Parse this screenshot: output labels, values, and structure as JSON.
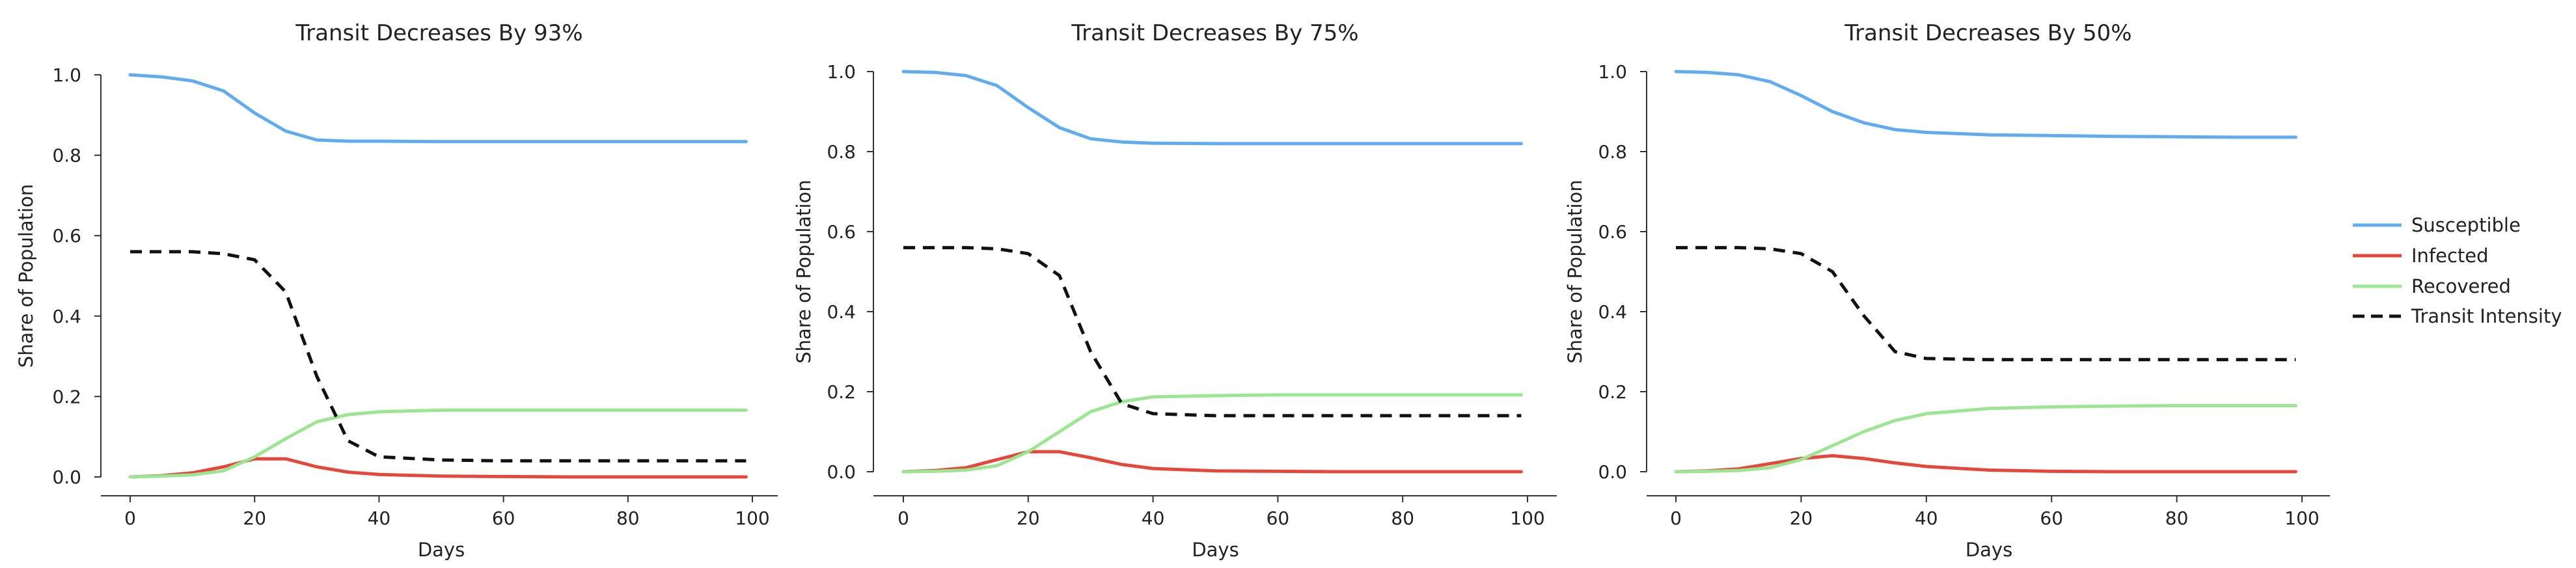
{
  "colors": {
    "susceptible": "#60acee",
    "infected": "#e5473b",
    "recovered": "#9ce592",
    "transit": "#111111",
    "axis": "#333333"
  },
  "legend": {
    "placement": "right",
    "entries": [
      {
        "label": "Susceptible",
        "key": "susceptible",
        "style": "solid"
      },
      {
        "label": "Infected",
        "key": "infected",
        "style": "solid"
      },
      {
        "label": "Recovered",
        "key": "recovered",
        "style": "solid"
      },
      {
        "label": "Transit Intensity",
        "key": "transit",
        "style": "dashed"
      }
    ]
  },
  "chart_data": [
    {
      "type": "line",
      "title": "Transit Decreases By 93%",
      "xlabel": "Days",
      "ylabel": "Share of Population",
      "xlim": [
        0,
        100
      ],
      "ylim": [
        0,
        1.0
      ],
      "xticks": [
        0,
        20,
        40,
        60,
        80,
        100
      ],
      "yticks": [
        0.0,
        0.2,
        0.4,
        0.6,
        0.8,
        1.0
      ],
      "ytick_labels": [
        "0.0",
        "0.2",
        "0.4",
        "0.6",
        "0.8",
        "1.0"
      ],
      "grid": false,
      "x": [
        0,
        5,
        10,
        15,
        20,
        25,
        30,
        35,
        40,
        50,
        60,
        70,
        80,
        90,
        99
      ],
      "series": [
        {
          "name": "Susceptible",
          "key": "susceptible",
          "style": "solid",
          "values": [
            1.0,
            0.995,
            0.985,
            0.96,
            0.905,
            0.86,
            0.838,
            0.835,
            0.835,
            0.834,
            0.834,
            0.834,
            0.834,
            0.834,
            0.834
          ]
        },
        {
          "name": "Infected",
          "key": "infected",
          "style": "solid",
          "values": [
            0.0,
            0.003,
            0.01,
            0.025,
            0.045,
            0.045,
            0.025,
            0.012,
            0.006,
            0.002,
            0.001,
            0.0,
            0.0,
            0.0,
            0.0
          ]
        },
        {
          "name": "Recovered",
          "key": "recovered",
          "style": "solid",
          "values": [
            0.0,
            0.002,
            0.005,
            0.015,
            0.05,
            0.095,
            0.137,
            0.155,
            0.162,
            0.166,
            0.166,
            0.166,
            0.166,
            0.166,
            0.166
          ]
        },
        {
          "name": "Transit Intensity",
          "key": "transit",
          "style": "dashed",
          "values": [
            0.56,
            0.56,
            0.56,
            0.555,
            0.54,
            0.46,
            0.25,
            0.09,
            0.05,
            0.042,
            0.04,
            0.04,
            0.04,
            0.04,
            0.04
          ]
        }
      ]
    },
    {
      "type": "line",
      "title": "Transit Decreases By 75%",
      "xlabel": "Days",
      "ylabel": "Share of Population",
      "xlim": [
        0,
        100
      ],
      "ylim": [
        0,
        1.0
      ],
      "xticks": [
        0,
        20,
        40,
        60,
        80,
        100
      ],
      "yticks": [
        0.0,
        0.2,
        0.4,
        0.6,
        0.8,
        1.0
      ],
      "ytick_labels": [
        "0.0",
        "0.2",
        "0.4",
        "0.6",
        "0.8",
        "1.0"
      ],
      "grid": false,
      "x": [
        0,
        5,
        10,
        15,
        20,
        25,
        30,
        35,
        40,
        50,
        60,
        70,
        80,
        90,
        99
      ],
      "series": [
        {
          "name": "Susceptible",
          "key": "susceptible",
          "style": "solid",
          "values": [
            1.0,
            0.998,
            0.99,
            0.965,
            0.91,
            0.86,
            0.832,
            0.824,
            0.821,
            0.82,
            0.82,
            0.82,
            0.82,
            0.82,
            0.82
          ]
        },
        {
          "name": "Infected",
          "key": "infected",
          "style": "solid",
          "values": [
            0.0,
            0.003,
            0.01,
            0.03,
            0.05,
            0.05,
            0.035,
            0.018,
            0.008,
            0.002,
            0.001,
            0.0,
            0.0,
            0.0,
            0.0
          ]
        },
        {
          "name": "Recovered",
          "key": "recovered",
          "style": "solid",
          "values": [
            0.0,
            0.001,
            0.004,
            0.015,
            0.05,
            0.1,
            0.15,
            0.175,
            0.187,
            0.19,
            0.192,
            0.192,
            0.192,
            0.192,
            0.192
          ]
        },
        {
          "name": "Transit Intensity",
          "key": "transit",
          "style": "dashed",
          "values": [
            0.56,
            0.56,
            0.56,
            0.557,
            0.545,
            0.49,
            0.3,
            0.17,
            0.145,
            0.14,
            0.14,
            0.14,
            0.14,
            0.14,
            0.14
          ]
        }
      ]
    },
    {
      "type": "line",
      "title": "Transit Decreases By 50%",
      "xlabel": "Days",
      "ylabel": "Share of Population",
      "xlim": [
        0,
        100
      ],
      "ylim": [
        0,
        1.0
      ],
      "xticks": [
        0,
        20,
        40,
        60,
        80,
        100
      ],
      "yticks": [
        0.0,
        0.2,
        0.4,
        0.6,
        0.8,
        1.0
      ],
      "ytick_labels": [
        "0.0",
        "0.2",
        "0.4",
        "0.6",
        "0.8",
        "1.0"
      ],
      "grid": false,
      "x": [
        0,
        5,
        10,
        15,
        20,
        25,
        30,
        35,
        40,
        50,
        60,
        70,
        80,
        90,
        99
      ],
      "series": [
        {
          "name": "Susceptible",
          "key": "susceptible",
          "style": "solid",
          "values": [
            1.0,
            0.998,
            0.992,
            0.975,
            0.94,
            0.9,
            0.872,
            0.855,
            0.848,
            0.842,
            0.84,
            0.838,
            0.837,
            0.836,
            0.836
          ]
        },
        {
          "name": "Infected",
          "key": "infected",
          "style": "solid",
          "values": [
            0.0,
            0.002,
            0.007,
            0.02,
            0.033,
            0.04,
            0.033,
            0.022,
            0.013,
            0.004,
            0.001,
            0.0,
            0.0,
            0.0,
            0.0
          ]
        },
        {
          "name": "Recovered",
          "key": "recovered",
          "style": "solid",
          "values": [
            0.0,
            0.001,
            0.003,
            0.01,
            0.03,
            0.065,
            0.1,
            0.128,
            0.145,
            0.158,
            0.162,
            0.164,
            0.165,
            0.165,
            0.165
          ]
        },
        {
          "name": "Transit Intensity",
          "key": "transit",
          "style": "dashed",
          "values": [
            0.56,
            0.56,
            0.56,
            0.557,
            0.545,
            0.5,
            0.39,
            0.3,
            0.283,
            0.28,
            0.28,
            0.28,
            0.28,
            0.28,
            0.28
          ]
        }
      ]
    }
  ]
}
